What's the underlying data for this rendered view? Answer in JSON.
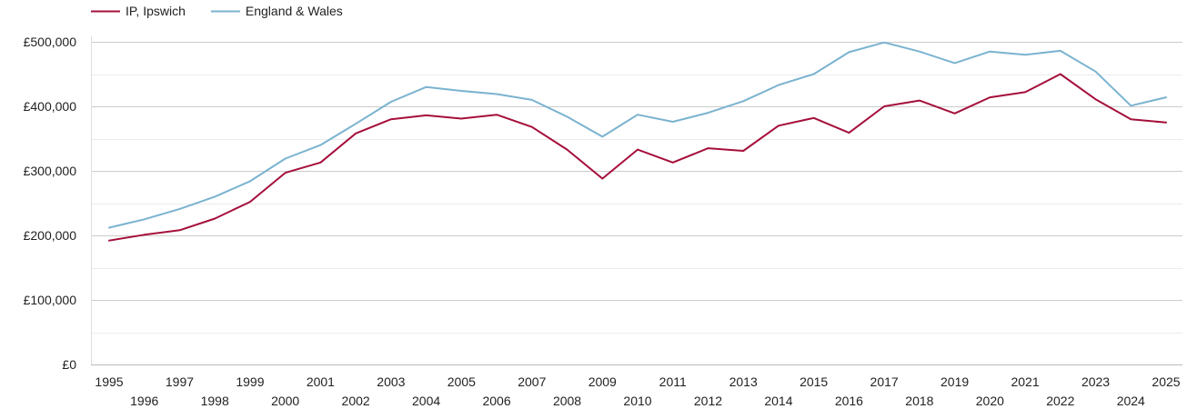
{
  "chart_data": {
    "type": "line",
    "title": "",
    "xlabel": "",
    "ylabel": "",
    "x": [
      1995,
      1996,
      1997,
      1998,
      1999,
      2000,
      2001,
      2002,
      2003,
      2004,
      2005,
      2006,
      2007,
      2008,
      2009,
      2010,
      2011,
      2012,
      2013,
      2014,
      2015,
      2016,
      2017,
      2018,
      2019,
      2020,
      2021,
      2022,
      2023,
      2024,
      2025
    ],
    "series": [
      {
        "name": "IP, Ipswich",
        "color": "#a50f3b",
        "values": [
          192000,
          201000,
          208000,
          226000,
          252000,
          297000,
          313000,
          358000,
          380000,
          386000,
          381000,
          387000,
          368000,
          333000,
          288000,
          333000,
          313000,
          335000,
          331000,
          370000,
          382000,
          359000,
          400000,
          409000,
          389000,
          414000,
          422000,
          450000,
          411000,
          380000,
          375000
        ]
      },
      {
        "name": "England & Wales",
        "color": "#7ab3cf",
        "values": [
          212000,
          225000,
          241000,
          260000,
          284000,
          319000,
          340000,
          373000,
          407000,
          430000,
          424000,
          419000,
          410000,
          384000,
          353000,
          387000,
          376000,
          390000,
          408000,
          433000,
          450000,
          484000,
          499000,
          485000,
          467000,
          485000,
          480000,
          486000,
          454000,
          401000,
          414000
        ]
      }
    ],
    "ylim": [
      0,
      500000
    ],
    "xlim": [
      1995,
      2025
    ],
    "y_ticks": [
      0,
      100000,
      200000,
      300000,
      400000,
      500000
    ],
    "y_tick_labels": [
      "£0",
      "£100,000",
      "£200,000",
      "£300,000",
      "£400,000",
      "£500,000"
    ],
    "x_tick_labels": [
      "1995",
      "1996",
      "1997",
      "1998",
      "1999",
      "2000",
      "2001",
      "2002",
      "2003",
      "2004",
      "2005",
      "2006",
      "2007",
      "2008",
      "2009",
      "2010",
      "2011",
      "2012",
      "2013",
      "2014",
      "2015",
      "2016",
      "2017",
      "2018",
      "2019",
      "2020",
      "2021",
      "2022",
      "2023",
      "2024",
      "2025"
    ],
    "grid": true,
    "legend_position": "top-left"
  }
}
